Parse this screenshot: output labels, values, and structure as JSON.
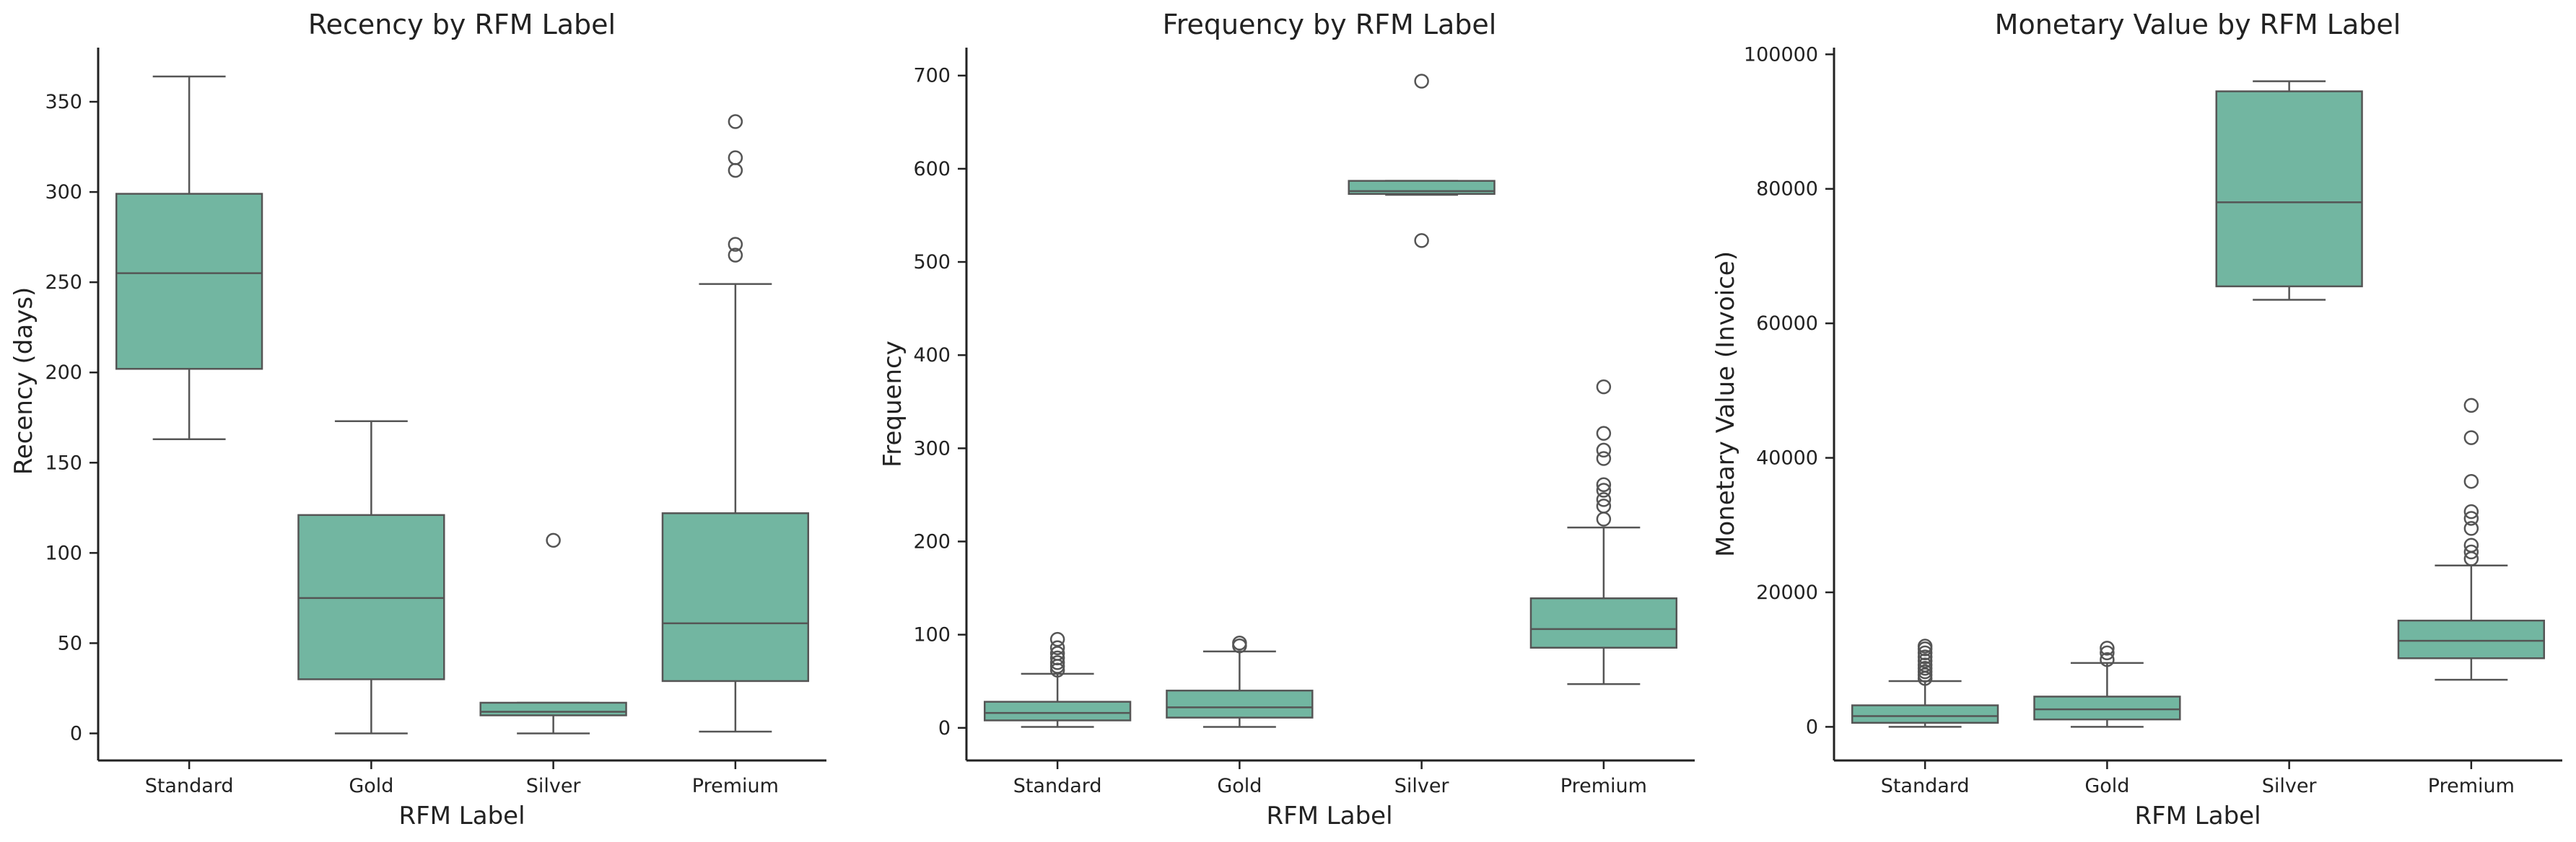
{
  "chart_data": [
    {
      "type": "box",
      "title": "Recency by RFM Label",
      "xlabel": "RFM Label",
      "ylabel": "Recency (days)",
      "categories": [
        "Standard",
        "Gold",
        "Silver",
        "Premium"
      ],
      "ylim": [
        -15,
        380
      ],
      "yticks": [
        0,
        50,
        100,
        150,
        200,
        250,
        300,
        350
      ],
      "box_color": "#72b6a1",
      "boxes": [
        {
          "category": "Standard",
          "whislo": 163,
          "q1": 202,
          "median": 255,
          "q3": 299,
          "whishi": 364,
          "fliers": []
        },
        {
          "category": "Gold",
          "whislo": 0,
          "q1": 30,
          "median": 75,
          "q3": 121,
          "whishi": 173,
          "fliers": []
        },
        {
          "category": "Silver",
          "whislo": 0,
          "q1": 10,
          "median": 12,
          "q3": 17,
          "whishi": 17,
          "fliers": [
            107
          ]
        },
        {
          "category": "Premium",
          "whislo": 1,
          "q1": 29,
          "median": 61,
          "q3": 122,
          "whishi": 249,
          "fliers": [
            265,
            271,
            312,
            319,
            339
          ]
        }
      ]
    },
    {
      "type": "box",
      "title": "Frequency by RFM Label",
      "xlabel": "RFM Label",
      "ylabel": "Frequency",
      "categories": [
        "Standard",
        "Gold",
        "Silver",
        "Premium"
      ],
      "ylim": [
        -35,
        730
      ],
      "yticks": [
        0,
        100,
        200,
        300,
        400,
        500,
        600,
        700
      ],
      "box_color": "#72b6a1",
      "boxes": [
        {
          "category": "Standard",
          "whislo": 1,
          "q1": 8,
          "median": 16,
          "q3": 28,
          "whishi": 58,
          "fliers": [
            62,
            66,
            70,
            75,
            80,
            86,
            95
          ]
        },
        {
          "category": "Gold",
          "whislo": 1,
          "q1": 11,
          "median": 22,
          "q3": 40,
          "whishi": 82,
          "fliers": [
            88,
            91
          ]
        },
        {
          "category": "Silver",
          "whislo": 572,
          "q1": 573,
          "median": 576,
          "q3": 587,
          "whishi": 587,
          "fliers": [
            523,
            694
          ]
        },
        {
          "category": "Premium",
          "whislo": 47,
          "q1": 86,
          "median": 106,
          "q3": 139,
          "whishi": 215,
          "fliers": [
            224,
            238,
            245,
            255,
            261,
            289,
            298,
            316,
            366
          ]
        }
      ]
    },
    {
      "type": "box",
      "title": "Monetary Value by RFM Label",
      "xlabel": "RFM Label",
      "ylabel": "Monetary Value (Invoice)",
      "categories": [
        "Standard",
        "Gold",
        "Silver",
        "Premium"
      ],
      "ylim": [
        -5000,
        101000
      ],
      "yticks": [
        0,
        20000,
        40000,
        60000,
        80000,
        100000
      ],
      "box_color": "#72b6a1",
      "boxes": [
        {
          "category": "Standard",
          "whislo": 0,
          "q1": 600,
          "median": 1600,
          "q3": 3200,
          "whishi": 6800,
          "fliers": [
            7200,
            7700,
            8200,
            8700,
            9200,
            9800,
            10400,
            11000,
            11600,
            12000
          ]
        },
        {
          "category": "Gold",
          "whislo": 0,
          "q1": 1100,
          "median": 2600,
          "q3": 4500,
          "whishi": 9500,
          "fliers": [
            10000,
            11000,
            11700
          ]
        },
        {
          "category": "Silver",
          "whislo": 63500,
          "q1": 65500,
          "median": 78000,
          "q3": 94500,
          "whishi": 96000,
          "fliers": []
        },
        {
          "category": "Premium",
          "whislo": 7000,
          "q1": 10200,
          "median": 12800,
          "q3": 15800,
          "whishi": 24000,
          "fliers": [
            25000,
            26000,
            27000,
            29500,
            31000,
            32000,
            36500,
            43000,
            47800
          ]
        }
      ]
    }
  ]
}
